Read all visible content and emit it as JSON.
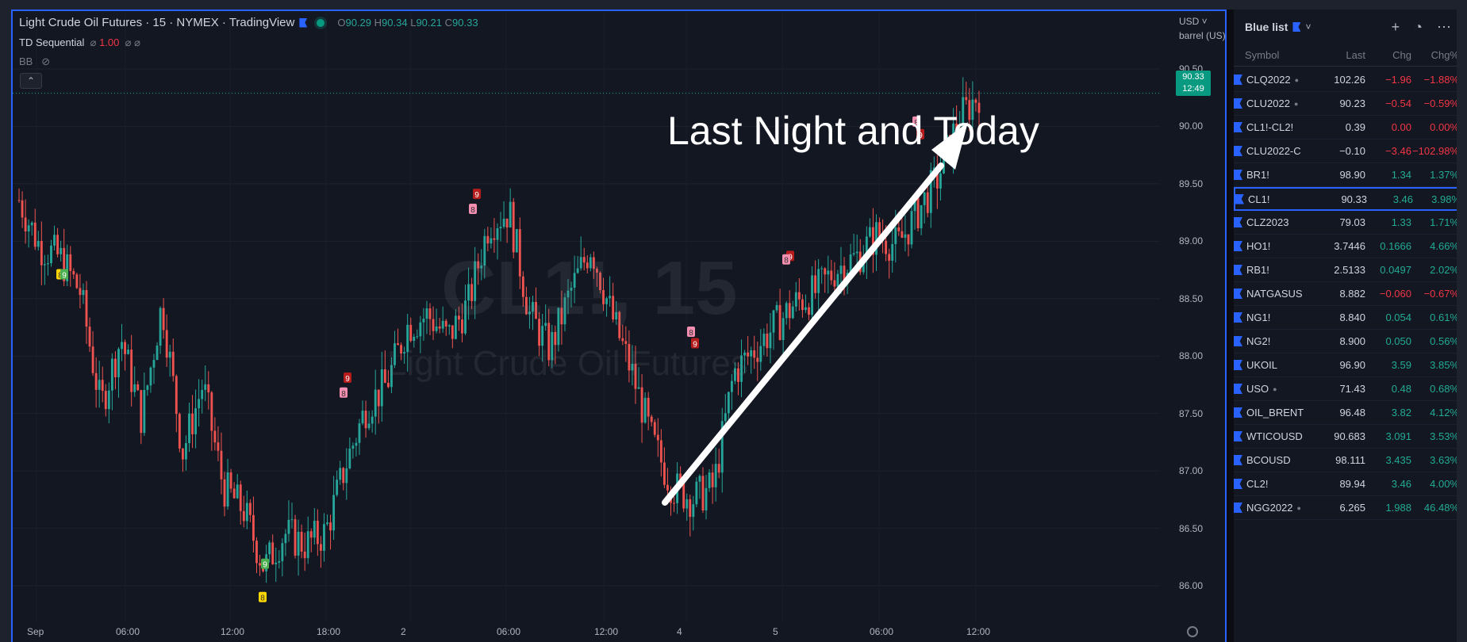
{
  "chart": {
    "symbol_title": "Light Crude Oil Futures · 15 · NYMEX · TradingView",
    "ohlc": {
      "o_label": "O",
      "o": "90.29",
      "h_label": "H",
      "h": "90.34",
      "l_label": "L",
      "l": "90.21",
      "c_label": "C",
      "c": "90.33"
    },
    "indicator1_name": "TD Sequential",
    "indicator1_val": "1.00",
    "indicator2_name": "BB",
    "collapse_icon": "chevron-up-icon",
    "currency": "USD",
    "unit": "barrel (US)",
    "last_price": "90.33",
    "countdown": "12:49",
    "watermark_symbol": "CL1!, 15",
    "watermark_name": "Light Crude Oil Futures",
    "annotation": "Last Night and Today",
    "colors": {
      "up": "#26a69a",
      "down": "#ef5350",
      "accent": "#2962ff"
    }
  },
  "chart_data": {
    "type": "candlestick",
    "y_ticks": [
      "90.50",
      "90.00",
      "89.50",
      "89.00",
      "88.50",
      "88.00",
      "87.50",
      "87.00",
      "86.50",
      "86.00"
    ],
    "x_ticks": [
      "Sep",
      "06:00",
      "12:00",
      "18:00",
      "2",
      "06:00",
      "12:00",
      "4",
      "5",
      "06:00",
      "12:00"
    ],
    "ylim": [
      85.8,
      90.7
    ],
    "path": [
      89.4,
      89.0,
      88.9,
      88.6,
      87.6,
      88.2,
      87.5,
      88.5,
      87.2,
      87.8,
      86.9,
      86.7,
      86.2,
      86.5,
      86.4,
      86.5,
      87.1,
      87.6,
      87.8,
      88.3,
      88.4,
      88.2,
      88.5,
      89.2,
      89.3,
      88.4,
      88.1,
      88.6,
      89.0,
      88.4,
      87.9,
      87.3,
      86.9,
      86.8,
      86.9,
      87.9,
      88.1,
      88.3,
      88.5,
      88.6,
      88.8,
      88.9,
      89.1,
      89.0,
      89.3,
      89.6,
      90.1,
      90.33
    ],
    "td_markers": [
      {
        "label": "8",
        "price": 88.75,
        "style": "yellow"
      },
      {
        "label": "9",
        "price": 88.75,
        "style": "green"
      },
      {
        "label": "9",
        "price": 86.23,
        "style": "green"
      },
      {
        "label": "8",
        "price": 85.94,
        "style": "yellow"
      },
      {
        "label": "9",
        "price": 87.85,
        "style": "red"
      },
      {
        "label": "8",
        "price": 87.72,
        "style": "pink"
      },
      {
        "label": "9",
        "price": 89.45,
        "style": "red"
      },
      {
        "label": "8",
        "price": 89.32,
        "style": "pink"
      },
      {
        "label": "8",
        "price": 88.25,
        "style": "pink"
      },
      {
        "label": "9",
        "price": 88.15,
        "style": "red"
      },
      {
        "label": "9",
        "price": 88.91,
        "style": "red"
      },
      {
        "label": "8",
        "price": 88.88,
        "style": "pink"
      },
      {
        "label": "8",
        "price": 90.08,
        "style": "pink"
      },
      {
        "label": "9",
        "price": 89.97,
        "style": "red"
      }
    ]
  },
  "watchlist": {
    "title": "Blue list",
    "columns": {
      "symbol": "Symbol",
      "last": "Last",
      "chg": "Chg",
      "pct": "Chg%"
    },
    "rows": [
      {
        "symbol": "CLQ2022",
        "dot": "●",
        "last": "102.26",
        "chg": "−1.96",
        "pct": "−1.88%",
        "dir": "neg"
      },
      {
        "symbol": "CLU2022",
        "dot": "●",
        "last": "90.23",
        "chg": "−0.54",
        "pct": "−0.59%",
        "dir": "neg"
      },
      {
        "symbol": "CL1!-CL2!",
        "dot": "",
        "last": "0.39",
        "chg": "0.00",
        "pct": "0.00%",
        "dir": "neg"
      },
      {
        "symbol": "CLU2022-C",
        "dot": "",
        "last": "−0.10",
        "chg": "−3.46",
        "pct": "−102.98%",
        "dir": "neg"
      },
      {
        "symbol": "BR1!",
        "dot": "",
        "last": "98.90",
        "chg": "1.34",
        "pct": "1.37%",
        "dir": "pos"
      },
      {
        "symbol": "CL1!",
        "dot": "",
        "last": "90.33",
        "chg": "3.46",
        "pct": "3.98%",
        "dir": "pos"
      },
      {
        "symbol": "CLZ2023",
        "dot": "",
        "last": "79.03",
        "chg": "1.33",
        "pct": "1.71%",
        "dir": "pos"
      },
      {
        "symbol": "HO1!",
        "dot": "",
        "last": "3.7446",
        "chg": "0.1666",
        "pct": "4.66%",
        "dir": "pos"
      },
      {
        "symbol": "RB1!",
        "dot": "",
        "last": "2.5133",
        "chg": "0.0497",
        "pct": "2.02%",
        "dir": "pos"
      },
      {
        "symbol": "NATGASUS",
        "dot": "",
        "last": "8.882",
        "chg": "−0.060",
        "pct": "−0.67%",
        "dir": "neg"
      },
      {
        "symbol": "NG1!",
        "dot": "",
        "last": "8.840",
        "chg": "0.054",
        "pct": "0.61%",
        "dir": "pos"
      },
      {
        "symbol": "NG2!",
        "dot": "",
        "last": "8.900",
        "chg": "0.050",
        "pct": "0.56%",
        "dir": "pos"
      },
      {
        "symbol": "UKOIL",
        "dot": "",
        "last": "96.90",
        "chg": "3.59",
        "pct": "3.85%",
        "dir": "pos"
      },
      {
        "symbol": "USO",
        "dot": "●",
        "last": "71.43",
        "chg": "0.48",
        "pct": "0.68%",
        "dir": "pos"
      },
      {
        "symbol": "OIL_BRENT",
        "dot": "",
        "last": "96.48",
        "chg": "3.82",
        "pct": "4.12%",
        "dir": "pos"
      },
      {
        "symbol": "WTICOUSD",
        "dot": "",
        "last": "90.683",
        "chg": "3.091",
        "pct": "3.53%",
        "dir": "pos"
      },
      {
        "symbol": "BCOUSD",
        "dot": "",
        "last": "98.111",
        "chg": "3.435",
        "pct": "3.63%",
        "dir": "pos"
      },
      {
        "symbol": "CL2!",
        "dot": "",
        "last": "89.94",
        "chg": "3.46",
        "pct": "4.00%",
        "dir": "pos"
      },
      {
        "symbol": "NGG2022",
        "dot": "●",
        "last": "6.265",
        "chg": "1.988",
        "pct": "46.48%",
        "dir": "pos"
      }
    ]
  }
}
